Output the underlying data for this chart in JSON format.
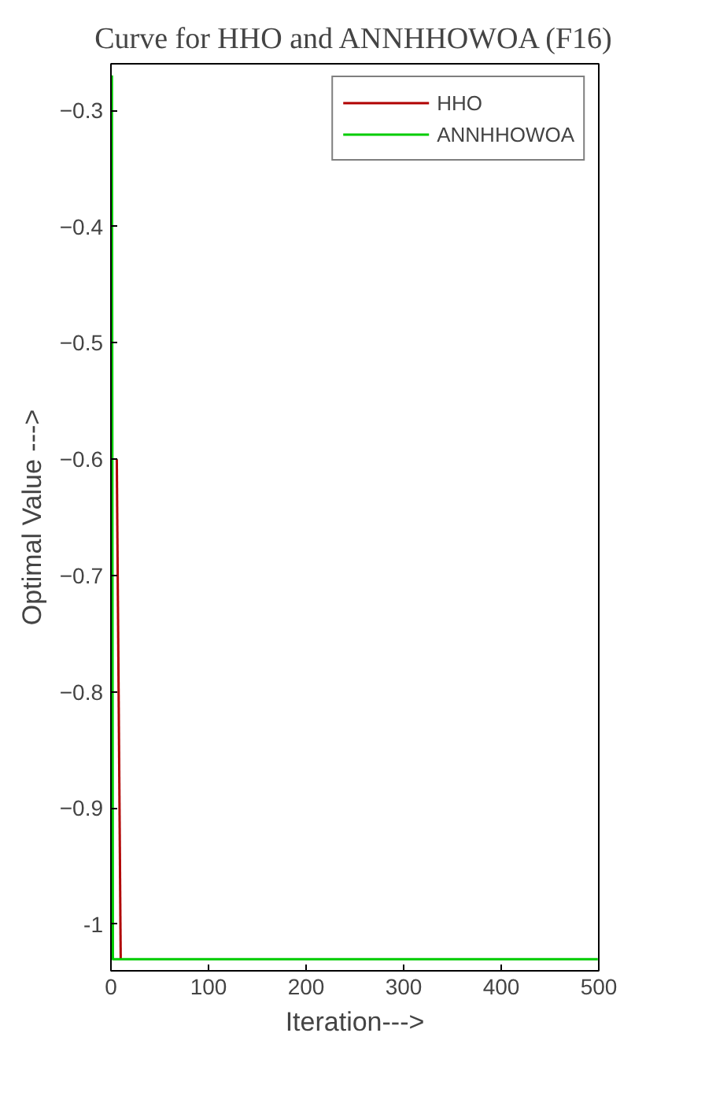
{
  "chart_data": {
    "type": "line",
    "title": "Curve for HHO and ANNHHOWOA (F16)",
    "xlabel": "Iteration--->",
    "ylabel": "Optimal Value --->",
    "xlim": [
      0,
      500
    ],
    "xticks": [
      0,
      100,
      200,
      300,
      400,
      500
    ],
    "ylim": [
      -1.04,
      -0.26
    ],
    "yticks": [
      {
        "value": -1,
        "label": "-1"
      },
      -0.9,
      -0.8,
      -0.7,
      -0.6,
      -0.5,
      -0.4,
      -0.3
    ],
    "grid": false,
    "legend": "top right",
    "series": [
      {
        "name": "HHO",
        "color": "#b00000",
        "x": [
          6,
          10
        ],
        "values": [
          -0.6,
          -1.03
        ]
      },
      {
        "name": "ANNHHOWOA",
        "color": "#00cc00",
        "x": [
          1,
          2,
          499
        ],
        "values": [
          -0.27,
          -1.03,
          -1.03
        ]
      }
    ]
  }
}
